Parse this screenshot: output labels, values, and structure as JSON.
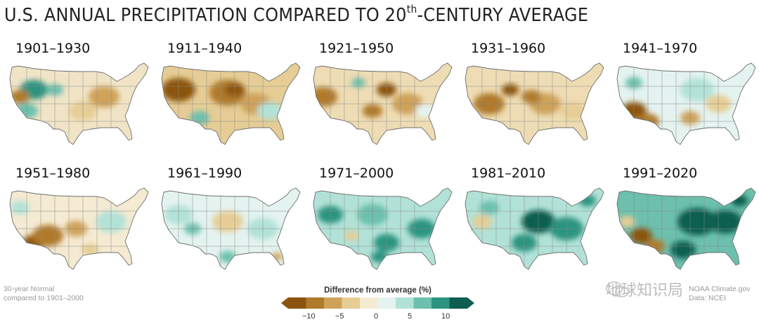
{
  "title": {
    "main_before": "U.S. ANNUAL PRECIPITATION COMPARED TO 20",
    "sup": "th",
    "main_after": "-CENTURY AVERAGE"
  },
  "panels": [
    {
      "label": "1901–1930"
    },
    {
      "label": "1911–1940"
    },
    {
      "label": "1921–1950"
    },
    {
      "label": "1931–1960"
    },
    {
      "label": "1941–1970"
    },
    {
      "label": "1951–1980"
    },
    {
      "label": "1961–1990"
    },
    {
      "label": "1971–2000"
    },
    {
      "label": "1981–2010"
    },
    {
      "label": "1991–2020"
    }
  ],
  "note": {
    "line1": "30-year Normal",
    "line2": "compared to 1901–2000"
  },
  "credit": {
    "line1": "NOAA Climate.gov",
    "line2": "Data: NCEI"
  },
  "watermark": {
    "text": "地球知识局"
  },
  "legend": {
    "title": "Difference from average (%)",
    "ticks": [
      "−10",
      "−5",
      "0",
      "5",
      "10"
    ],
    "colors": [
      "#8c5410",
      "#b07a2b",
      "#cfa25a",
      "#e6cd95",
      "#f5ead2",
      "#e4f3ef",
      "#b2e2d7",
      "#6cc0ad",
      "#2c9480",
      "#0d5e50"
    ]
  },
  "colors": {
    "dry": "#a46a1f",
    "wet": "#137a68",
    "neutral": "#f6f0e0"
  }
}
